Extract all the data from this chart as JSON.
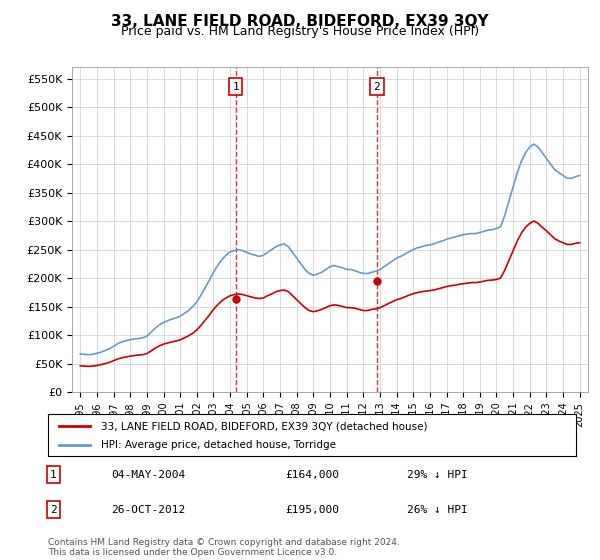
{
  "title": "33, LANE FIELD ROAD, BIDEFORD, EX39 3QY",
  "subtitle": "Price paid vs. HM Land Registry's House Price Index (HPI)",
  "title_fontsize": 11,
  "subtitle_fontsize": 9,
  "ylabel_ticks": [
    "£0",
    "£50K",
    "£100K",
    "£150K",
    "£200K",
    "£250K",
    "£300K",
    "£350K",
    "£400K",
    "£450K",
    "£500K",
    "£550K"
  ],
  "ytick_values": [
    0,
    50000,
    100000,
    150000,
    200000,
    250000,
    300000,
    350000,
    400000,
    450000,
    500000,
    550000
  ],
  "ylim": [
    0,
    570000
  ],
  "xlim_start": 1994.5,
  "xlim_end": 2025.5,
  "sale1_x": 2004.34,
  "sale1_y": 164000,
  "sale2_x": 2012.82,
  "sale2_y": 195000,
  "sale1_label": "04-MAY-2004",
  "sale1_price": "£164,000",
  "sale1_hpi": "29% ↓ HPI",
  "sale2_label": "26-OCT-2012",
  "sale2_price": "£195,000",
  "sale2_hpi": "26% ↓ HPI",
  "red_line_color": "#cc0000",
  "blue_line_color": "#6699cc",
  "dashed_line_color": "#cc0000",
  "marker_box_color": "#cc0000",
  "grid_color": "#cccccc",
  "background_color": "#ffffff",
  "legend_label_red": "33, LANE FIELD ROAD, BIDEFORD, EX39 3QY (detached house)",
  "legend_label_blue": "HPI: Average price, detached house, Torridge",
  "footer_text": "Contains HM Land Registry data © Crown copyright and database right 2024.\nThis data is licensed under the Open Government Licence v3.0.",
  "hpi_years": [
    1995.0,
    1995.25,
    1995.5,
    1995.75,
    1996.0,
    1996.25,
    1996.5,
    1996.75,
    1997.0,
    1997.25,
    1997.5,
    1997.75,
    1998.0,
    1998.25,
    1998.5,
    1998.75,
    1999.0,
    1999.25,
    1999.5,
    1999.75,
    2000.0,
    2000.25,
    2000.5,
    2000.75,
    2001.0,
    2001.25,
    2001.5,
    2001.75,
    2002.0,
    2002.25,
    2002.5,
    2002.75,
    2003.0,
    2003.25,
    2003.5,
    2003.75,
    2004.0,
    2004.25,
    2004.5,
    2004.75,
    2005.0,
    2005.25,
    2005.5,
    2005.75,
    2006.0,
    2006.25,
    2006.5,
    2006.75,
    2007.0,
    2007.25,
    2007.5,
    2007.75,
    2008.0,
    2008.25,
    2008.5,
    2008.75,
    2009.0,
    2009.25,
    2009.5,
    2009.75,
    2010.0,
    2010.25,
    2010.5,
    2010.75,
    2011.0,
    2011.25,
    2011.5,
    2011.75,
    2012.0,
    2012.25,
    2012.5,
    2012.75,
    2013.0,
    2013.25,
    2013.5,
    2013.75,
    2014.0,
    2014.25,
    2014.5,
    2014.75,
    2015.0,
    2015.25,
    2015.5,
    2015.75,
    2016.0,
    2016.25,
    2016.5,
    2016.75,
    2017.0,
    2017.25,
    2017.5,
    2017.75,
    2018.0,
    2018.25,
    2018.5,
    2018.75,
    2019.0,
    2019.25,
    2019.5,
    2019.75,
    2020.0,
    2020.25,
    2020.5,
    2020.75,
    2021.0,
    2021.25,
    2021.5,
    2021.75,
    2022.0,
    2022.25,
    2022.5,
    2022.75,
    2023.0,
    2023.25,
    2023.5,
    2023.75,
    2024.0,
    2024.25,
    2024.5,
    2024.75,
    2025.0
  ],
  "hpi_values": [
    67000,
    66000,
    65500,
    66000,
    68000,
    70000,
    73000,
    76000,
    80000,
    85000,
    88000,
    90000,
    92000,
    93000,
    94000,
    95000,
    98000,
    105000,
    112000,
    118000,
    122000,
    125000,
    128000,
    130000,
    133000,
    138000,
    143000,
    150000,
    158000,
    170000,
    183000,
    196000,
    210000,
    222000,
    232000,
    240000,
    246000,
    248000,
    250000,
    248000,
    245000,
    242000,
    240000,
    238000,
    240000,
    245000,
    250000,
    255000,
    258000,
    260000,
    255000,
    245000,
    235000,
    225000,
    215000,
    208000,
    205000,
    207000,
    210000,
    215000,
    220000,
    222000,
    220000,
    218000,
    215000,
    215000,
    213000,
    210000,
    208000,
    208000,
    210000,
    212000,
    215000,
    220000,
    225000,
    230000,
    235000,
    238000,
    242000,
    246000,
    250000,
    253000,
    255000,
    257000,
    258000,
    260000,
    263000,
    265000,
    268000,
    270000,
    272000,
    274000,
    276000,
    277000,
    278000,
    278000,
    280000,
    282000,
    284000,
    285000,
    287000,
    290000,
    310000,
    335000,
    360000,
    385000,
    405000,
    420000,
    430000,
    435000,
    430000,
    420000,
    410000,
    400000,
    390000,
    385000,
    380000,
    375000,
    375000,
    378000,
    380000
  ],
  "red_years": [
    1995.0,
    1995.25,
    1995.5,
    1995.75,
    1996.0,
    1996.25,
    1996.5,
    1996.75,
    1997.0,
    1997.25,
    1997.5,
    1997.75,
    1998.0,
    1998.25,
    1998.5,
    1998.75,
    1999.0,
    1999.25,
    1999.5,
    1999.75,
    2000.0,
    2000.25,
    2000.5,
    2000.75,
    2001.0,
    2001.25,
    2001.5,
    2001.75,
    2002.0,
    2002.25,
    2002.5,
    2002.75,
    2003.0,
    2003.25,
    2003.5,
    2003.75,
    2004.0,
    2004.25,
    2004.5,
    2004.75,
    2005.0,
    2005.25,
    2005.5,
    2005.75,
    2006.0,
    2006.25,
    2006.5,
    2006.75,
    2007.0,
    2007.25,
    2007.5,
    2007.75,
    2008.0,
    2008.25,
    2008.5,
    2008.75,
    2009.0,
    2009.25,
    2009.5,
    2009.75,
    2010.0,
    2010.25,
    2010.5,
    2010.75,
    2011.0,
    2011.25,
    2011.5,
    2011.75,
    2012.0,
    2012.25,
    2012.5,
    2012.75,
    2013.0,
    2013.25,
    2013.5,
    2013.75,
    2014.0,
    2014.25,
    2014.5,
    2014.75,
    2015.0,
    2015.25,
    2015.5,
    2015.75,
    2016.0,
    2016.25,
    2016.5,
    2016.75,
    2017.0,
    2017.25,
    2017.5,
    2017.75,
    2018.0,
    2018.25,
    2018.5,
    2018.75,
    2019.0,
    2019.25,
    2019.5,
    2019.75,
    2020.0,
    2020.25,
    2020.5,
    2020.75,
    2021.0,
    2021.25,
    2021.5,
    2021.75,
    2022.0,
    2022.25,
    2022.5,
    2022.75,
    2023.0,
    2023.25,
    2023.5,
    2023.75,
    2024.0,
    2024.25,
    2024.5,
    2024.75,
    2025.0
  ],
  "red_values": [
    46000,
    45500,
    45000,
    45500,
    46500,
    48000,
    50000,
    52000,
    55000,
    58000,
    60000,
    61500,
    63000,
    64000,
    65000,
    65500,
    67500,
    72000,
    77000,
    81000,
    84000,
    86000,
    88000,
    89500,
    91500,
    95000,
    98500,
    103000,
    109000,
    117000,
    126000,
    135000,
    145000,
    153000,
    160000,
    165000,
    169000,
    171000,
    172000,
    171000,
    169000,
    167000,
    165000,
    164000,
    165000,
    169000,
    172000,
    176000,
    178000,
    179000,
    176000,
    169000,
    162000,
    155000,
    148000,
    143000,
    141000,
    142500,
    145000,
    148000,
    151500,
    153000,
    152000,
    150000,
    148000,
    148000,
    147000,
    145000,
    143000,
    143000,
    145000,
    146000,
    148000,
    151500,
    155000,
    158500,
    162000,
    164000,
    167000,
    170000,
    172500,
    174500,
    176000,
    177000,
    178000,
    179000,
    181000,
    183000,
    185000,
    186500,
    187500,
    189000,
    190000,
    191000,
    192000,
    192000,
    193000,
    194500,
    196000,
    196500,
    197500,
    200000,
    214000,
    231000,
    248000,
    265000,
    279000,
    289000,
    296000,
    300000,
    296000,
    289000,
    283000,
    276000,
    269000,
    265000,
    262000,
    259000,
    259000,
    261000,
    262000
  ]
}
